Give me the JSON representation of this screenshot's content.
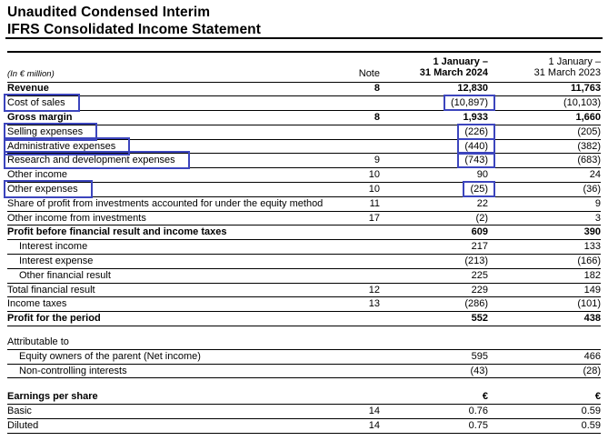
{
  "title": {
    "line1": "Unaudited Condensed Interim",
    "line2": "IFRS Consolidated Income Statement"
  },
  "annotation_color": "#3c45bd",
  "table": {
    "unit_label": "(In € million)",
    "columns": {
      "note": "Note",
      "period_2024_line1": "1 January –",
      "period_2024_line2": "31 March 2024",
      "period_2023_line1": "1 January –",
      "period_2023_line2": "31 March 2023"
    },
    "rows": [
      {
        "label": "Revenue",
        "note": "8",
        "v2024": "12,830",
        "v2023": "11,763",
        "bold": true
      },
      {
        "label": "Cost of sales",
        "v2024": "(10,897)",
        "v2023": "(10,103)",
        "box_label": true,
        "box_v2024": true
      },
      {
        "label": "Gross margin",
        "note": "8",
        "v2024": "1,933",
        "v2023": "1,660",
        "bold": true
      },
      {
        "label": "Selling expenses",
        "v2024": "(226)",
        "v2023": "(205)",
        "box_label": true,
        "box_v2024": true
      },
      {
        "label": "Administrative expenses",
        "v2024": "(440)",
        "v2023": "(382)",
        "box_label": true,
        "box_v2024": true
      },
      {
        "label": "Research and development expenses",
        "note": "9",
        "v2024": "(743)",
        "v2023": "(683)",
        "box_label": true,
        "box_v2024": true
      },
      {
        "label": "Other income",
        "note": "10",
        "v2024": "90",
        "v2023": "24"
      },
      {
        "label": "Other expenses",
        "note": "10",
        "v2024": "(25)",
        "v2023": "(36)",
        "box_label": true,
        "box_v2024": true
      },
      {
        "label": "Share of profit from investments accounted for under the equity method",
        "note": "11",
        "v2024": "22",
        "v2023": "9"
      },
      {
        "label": "Other income from investments",
        "note": "17",
        "v2024": "(2)",
        "v2023": "3"
      },
      {
        "label": "Profit before financial result and income taxes",
        "v2024": "609",
        "v2023": "390",
        "bold": true
      },
      {
        "label": "Interest income",
        "v2024": "217",
        "v2023": "133",
        "indent": true
      },
      {
        "label": "Interest expense",
        "v2024": "(213)",
        "v2023": "(166)",
        "indent": true
      },
      {
        "label": "Other financial result",
        "v2024": "225",
        "v2023": "182",
        "indent": true
      },
      {
        "label": "Total financial result",
        "note": "12",
        "v2024": "229",
        "v2023": "149"
      },
      {
        "label": "Income taxes",
        "note": "13",
        "v2024": "(286)",
        "v2023": "(101)"
      },
      {
        "label": "Profit for the period",
        "v2024": "552",
        "v2023": "438",
        "bold": true,
        "thick": true
      },
      {
        "label": "Attributable to",
        "gap_before": 10
      },
      {
        "label": "Equity owners of the parent (Net income)",
        "v2024": "595",
        "v2023": "466",
        "indent": true
      },
      {
        "label": "Non-controlling interests",
        "v2024": "(43)",
        "v2023": "(28)",
        "indent": true
      },
      {
        "label": "Earnings per share",
        "v2024": "€",
        "v2023": "€",
        "bold": true,
        "gap_before": 13
      },
      {
        "label": "Basic",
        "note": "14",
        "v2024": "0.76",
        "v2023": "0.59"
      },
      {
        "label": "Diluted",
        "note": "14",
        "v2024": "0.75",
        "v2023": "0.59"
      }
    ]
  }
}
